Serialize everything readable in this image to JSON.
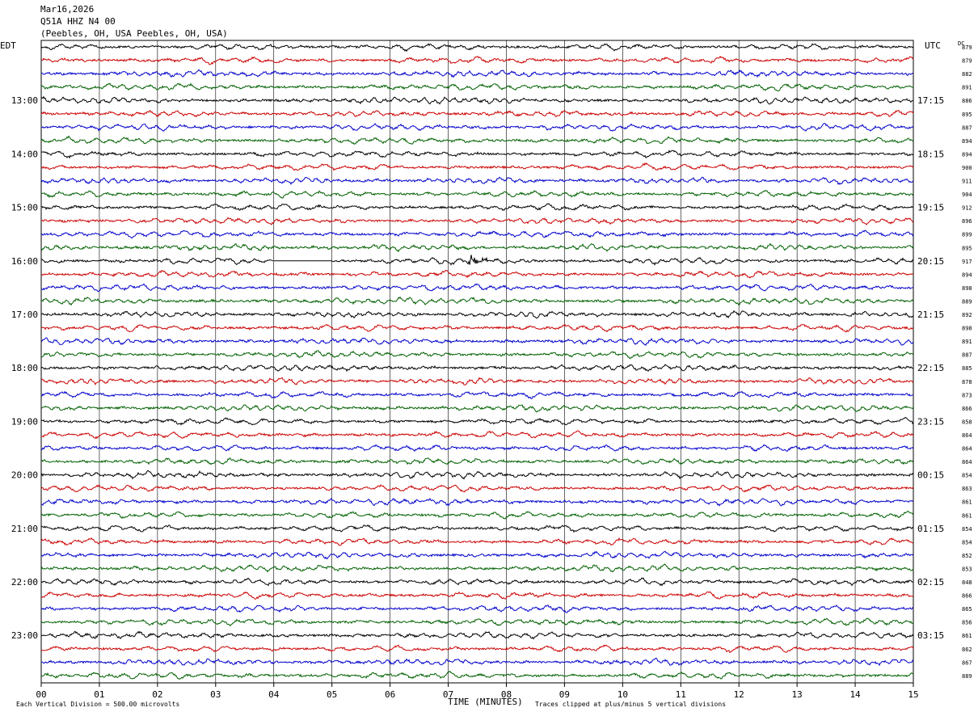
{
  "header": {
    "date": "Mar16,2026",
    "station": "Q51A HHZ N4 00",
    "location": "(Peebles, OH, USA Peebles, OH, USA)"
  },
  "left_tz": "EDT",
  "right_tz": "UTC",
  "dc_label": "DC",
  "footer": {
    "xaxis_title": "TIME (MINUTES)",
    "scale_note": "Each Vertical Division =  500.00 microvolts",
    "clip_note": "Traces clipped at plus/minus 5 vertical divisions"
  },
  "colors": {
    "trace_cycle": [
      "#000000",
      "#cc0000",
      "#0000cc",
      "#006000"
    ],
    "grid": "#000000"
  },
  "chart_data": {
    "type": "line",
    "title": "",
    "xlabel": "TIME (MINUTES)",
    "ylabel": "",
    "xlim": [
      0,
      15
    ],
    "x_ticks": [
      "00",
      "01",
      "02",
      "03",
      "04",
      "05",
      "06",
      "07",
      "08",
      "09",
      "10",
      "11",
      "12",
      "13",
      "14",
      "15"
    ],
    "left_hour_labels": [
      "13:00",
      "14:00",
      "15:00",
      "16:00",
      "17:00",
      "18:00",
      "19:00",
      "20:00",
      "21:00",
      "22:00",
      "23:00"
    ],
    "right_hour_labels": [
      "17:15",
      "18:15",
      "19:15",
      "20:15",
      "21:15",
      "22:15",
      "23:15",
      "00:15",
      "01:15",
      "02:15",
      "03:15"
    ],
    "dc_offsets": [
      879,
      879,
      882,
      891,
      886,
      895,
      887,
      894,
      894,
      900,
      911,
      904,
      912,
      896,
      899,
      895,
      917,
      894,
      898,
      889,
      892,
      898,
      891,
      887,
      885,
      878,
      873,
      866,
      858,
      864,
      864,
      864,
      854,
      863,
      861,
      861,
      854,
      854,
      852,
      853,
      848,
      866,
      865,
      856,
      861,
      862,
      867,
      889
    ],
    "data_gap": {
      "trace": 16,
      "start_min": 4.0,
      "end_min": 5.0
    },
    "event": {
      "trace": 16,
      "time_min": 7.4
    }
  }
}
